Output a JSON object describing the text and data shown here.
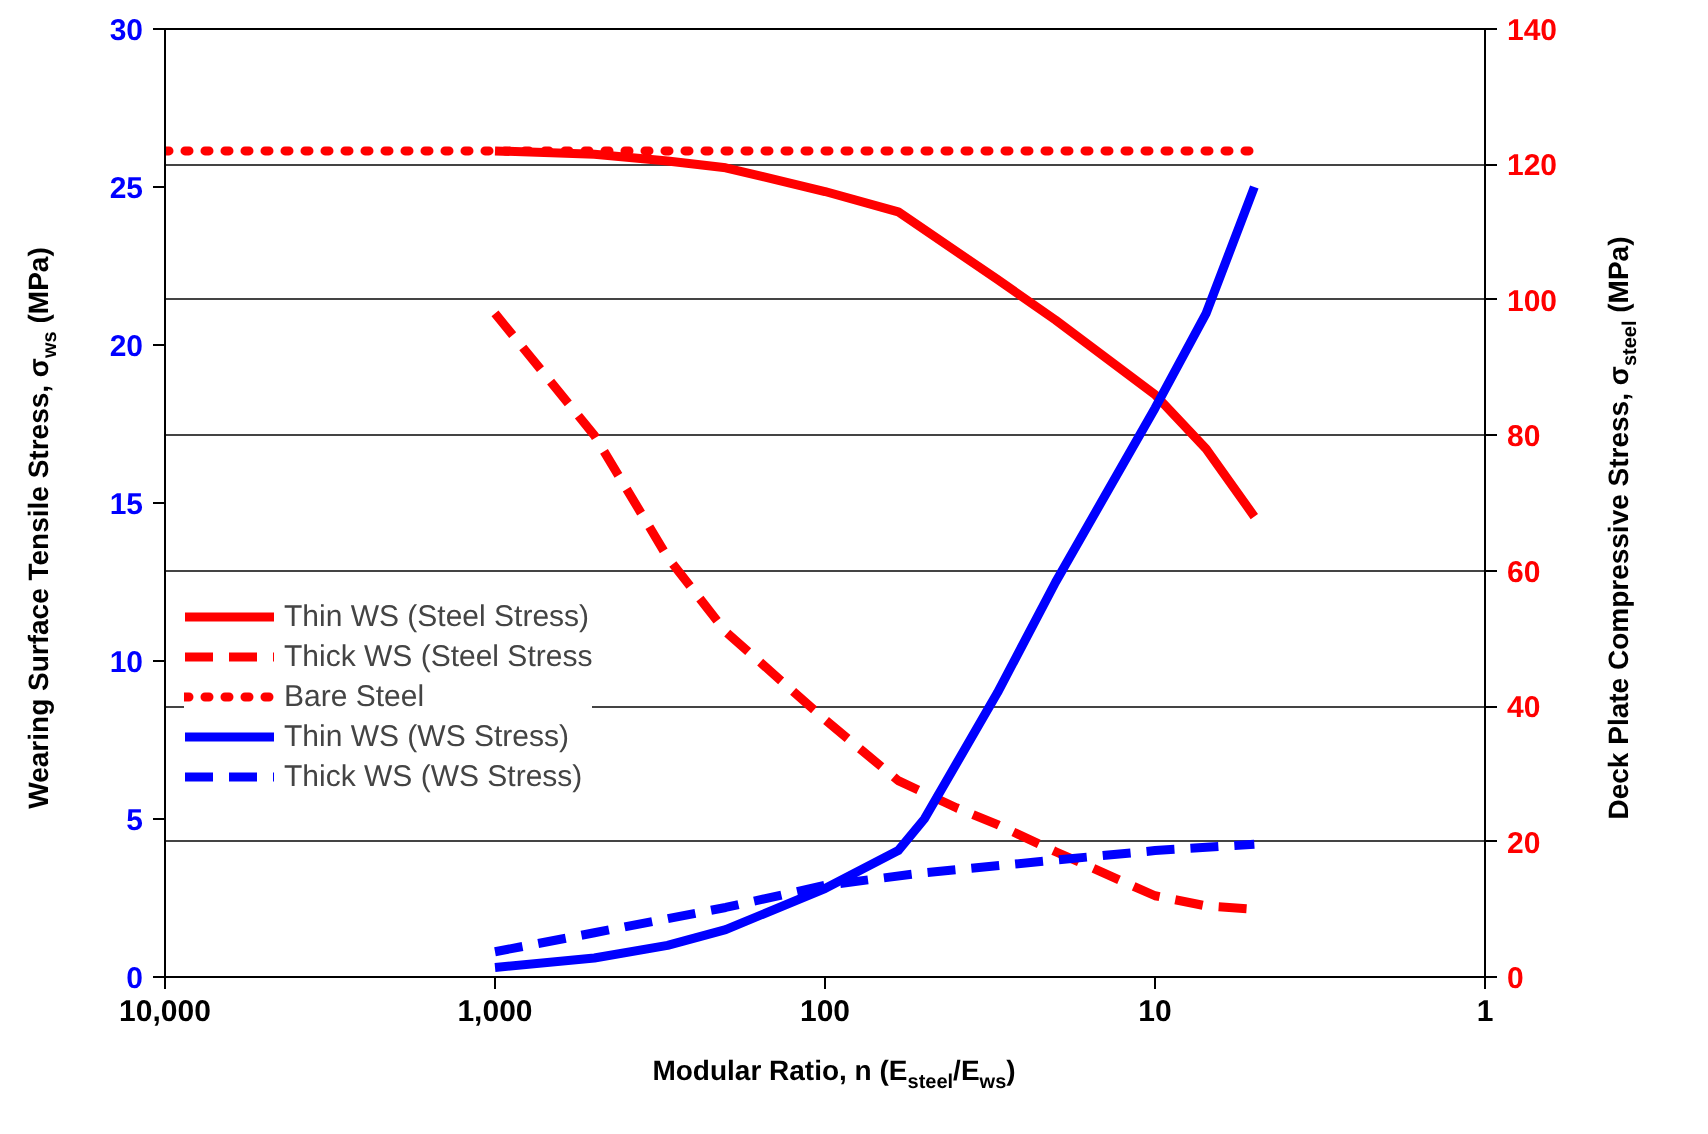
{
  "chart_data": {
    "type": "line",
    "xlabel": "Modular Ratio, n (E$_{steel}$/E$_{ws}$)",
    "ylabel": "Wearing Surface Tensile Stress, σ$_{ws}$ (MPa)",
    "y2label": "Deck Plate Compressive Stress, σ$_{steel}$ (MPa)",
    "log": "x",
    "xlim": [
      10000,
      1
    ],
    "xticks": [
      {
        "value": 10000,
        "label": "10,000"
      },
      {
        "value": 1000,
        "label": "1,000"
      },
      100,
      10,
      1
    ],
    "ylim": [
      0,
      30
    ],
    "yticks": [
      0,
      5,
      10,
      15,
      20,
      25,
      30
    ],
    "y2lim": [
      0,
      140
    ],
    "y2ticks": [
      0,
      20,
      40,
      60,
      80,
      100,
      120,
      140
    ],
    "grid": "y2",
    "legend": "left",
    "series": [
      {
        "name": "Thin WS (Steel Stress)",
        "color": "#ff0000",
        "axis": "y2",
        "line_style": "solid",
        "x": [
          1000,
          500,
          300,
          200,
          100,
          60,
          30,
          20,
          10,
          7,
          5
        ],
        "values": [
          122,
          121.5,
          120.5,
          119.5,
          116,
          113,
          103,
          97,
          86,
          78,
          68
        ]
      },
      {
        "name": "Thick WS (Steel Stress",
        "color": "#ff0000",
        "axis": "y2",
        "line_style": "dashed",
        "x": [
          1000,
          500,
          300,
          200,
          100,
          60,
          40,
          30,
          20,
          10,
          7,
          5
        ],
        "values": [
          98,
          80,
          62,
          51,
          38,
          29,
          25,
          22.5,
          18.5,
          12,
          10.5,
          10
        ]
      },
      {
        "name": "Bare Steel",
        "color": "#ff0000",
        "axis": "y2",
        "line_style": "dotted",
        "x": [
          10000,
          5
        ],
        "values": [
          122,
          122
        ]
      },
      {
        "name": "Thin WS (WS Stress)",
        "color": "#0000ff",
        "axis": "y",
        "line_style": "solid",
        "x": [
          1000,
          500,
          300,
          200,
          100,
          60,
          50,
          30,
          20,
          10,
          7,
          5
        ],
        "values": [
          0.3,
          0.6,
          1.0,
          1.5,
          2.8,
          4.0,
          5.0,
          9.0,
          12.5,
          18,
          21,
          25
        ]
      },
      {
        "name": "Thick WS (WS Stress)",
        "color": "#0000ff",
        "axis": "y",
        "line_style": "dashed",
        "x": [
          1000,
          500,
          200,
          100,
          50,
          20,
          10,
          5
        ],
        "values": [
          0.8,
          1.4,
          2.2,
          2.9,
          3.3,
          3.7,
          4.0,
          4.2
        ]
      }
    ]
  }
}
